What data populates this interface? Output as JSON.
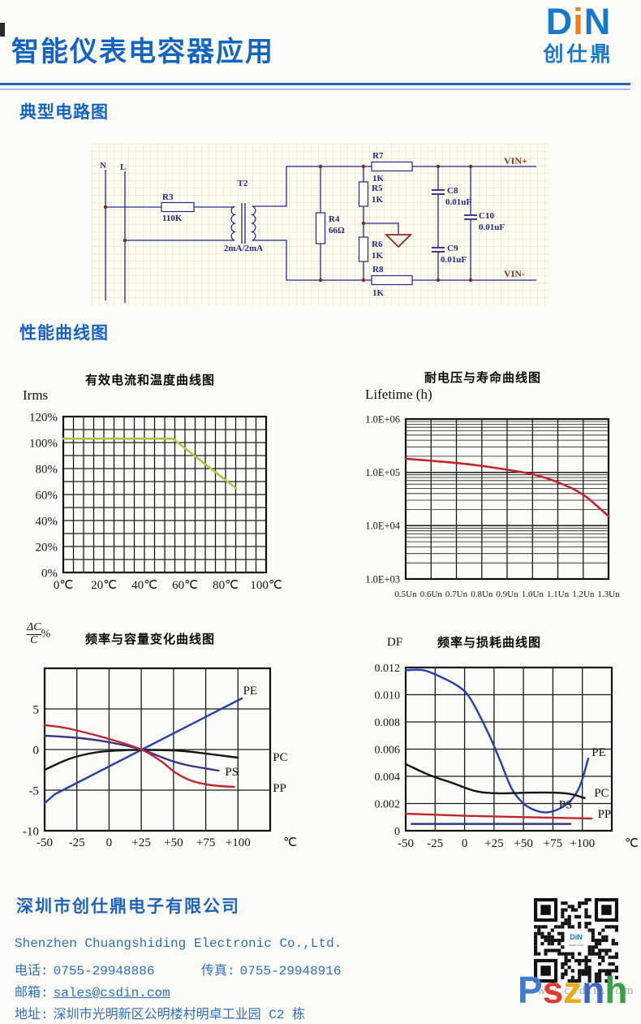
{
  "header": {
    "title": "智能仪表电容器应用",
    "logo": {
      "d": "D",
      "i": "i",
      "n": "N",
      "cn": "创仕鼎"
    }
  },
  "sections": {
    "circuit": "典型电路图",
    "curves": "性能曲线图"
  },
  "circuit": {
    "n": "N",
    "l": "L",
    "r3": "R3",
    "r3v": "110K",
    "t2": "T2",
    "t2v": "2mA/2mA",
    "r4": "R4",
    "r4v": "66Ω",
    "r5": "R5",
    "r5v": "1K",
    "r6": "R6",
    "r6v": "1K",
    "r7": "R7",
    "r7v": "1K",
    "r8": "R8",
    "r8v": "1K",
    "c8": "C8",
    "c8v": "0.01uF",
    "c9": "C9",
    "c9v": "0.01uF",
    "c10": "C10",
    "c10v": "0.01uF",
    "vin_plus": "VIN+",
    "vin_minus": "VIN-"
  },
  "chart_data": [
    {
      "name": "irms-temp",
      "type": "line",
      "title": "有效电流和温度曲线图",
      "ylabel": "Irms",
      "xlim": [
        0,
        100
      ],
      "ylim": [
        0,
        120
      ],
      "xgrid_step": 5,
      "ygrid_step": 10,
      "xticks": [
        {
          "v": 0,
          "t": "0℃"
        },
        {
          "v": 20,
          "t": "20℃"
        },
        {
          "v": 40,
          "t": "40℃"
        },
        {
          "v": 60,
          "t": "60℃"
        },
        {
          "v": 80,
          "t": "80℃"
        },
        {
          "v": 100,
          "t": "100℃"
        }
      ],
      "yticks": [
        {
          "v": 0,
          "t": "0%"
        },
        {
          "v": 20,
          "t": "20%"
        },
        {
          "v": 40,
          "t": "40%"
        },
        {
          "v": 60,
          "t": "60%"
        },
        {
          "v": 80,
          "t": "80%"
        },
        {
          "v": 100,
          "t": "100%"
        },
        {
          "v": 120,
          "t": "120%"
        }
      ],
      "series": [
        {
          "name": "irms",
          "color": "#a8c93e",
          "width": 2.6,
          "smooth": false,
          "points": [
            [
              0,
              103
            ],
            [
              54,
              103
            ],
            [
              85,
              65
            ]
          ]
        }
      ]
    },
    {
      "name": "voltage-lifetime",
      "type": "line",
      "title": "耐电压与寿命曲线图",
      "ylabel": "Lifetime (h)",
      "xlim": [
        0.5,
        1.3
      ],
      "ylim": [
        1000,
        1000000
      ],
      "ylog": true,
      "xgrid_step": 0.1,
      "xticks": [
        {
          "v": 0.5,
          "t": "0.5Un"
        },
        {
          "v": 0.6,
          "t": "0.6Un"
        },
        {
          "v": 0.7,
          "t": "0.7Un"
        },
        {
          "v": 0.8,
          "t": "0.8Un"
        },
        {
          "v": 0.9,
          "t": "0.9Un"
        },
        {
          "v": 1.0,
          "t": "1.0Un"
        },
        {
          "v": 1.1,
          "t": "1.1Un"
        },
        {
          "v": 1.2,
          "t": "1.2Un"
        },
        {
          "v": 1.3,
          "t": "1.3Un"
        }
      ],
      "yticks": [
        {
          "v": 1000000,
          "t": "1.0E+06"
        },
        {
          "v": 100000,
          "t": "1.0E+05"
        },
        {
          "v": 10000,
          "t": "1.0E+04"
        },
        {
          "v": 1000,
          "t": "1.0E+03"
        }
      ],
      "series": [
        {
          "name": "lifetime",
          "color": "#c0272d",
          "width": 2.6,
          "smooth": true,
          "points": [
            [
              0.5,
              180000
            ],
            [
              0.6,
              165000
            ],
            [
              0.7,
              150000
            ],
            [
              0.8,
              132000
            ],
            [
              0.9,
              112000
            ],
            [
              1.0,
              92000
            ],
            [
              1.1,
              65000
            ],
            [
              1.2,
              38000
            ],
            [
              1.3,
              15000
            ]
          ]
        }
      ]
    },
    {
      "name": "freq-capacitance-change",
      "type": "line",
      "title": "频率与容量变化曲线图",
      "ylabel_frac": {
        "num": "ΔC",
        "den": "C",
        "suffix": "%"
      },
      "xlim": [
        -50,
        125
      ],
      "ylim": [
        -10,
        10
      ],
      "xgrid_step": 25,
      "ygrid_step": 5,
      "x_unit": "℃",
      "xticks": [
        {
          "v": -50,
          "t": "-50"
        },
        {
          "v": -25,
          "t": "-25"
        },
        {
          "v": 0,
          "t": "0"
        },
        {
          "v": 25,
          "t": "+25"
        },
        {
          "v": 50,
          "t": "+50"
        },
        {
          "v": 75,
          "t": "+75"
        },
        {
          "v": 100,
          "t": "+100"
        }
      ],
      "yticks": [
        {
          "v": 5,
          "t": "5"
        },
        {
          "v": 0,
          "t": "0"
        },
        {
          "v": -5,
          "t": "-5"
        },
        {
          "v": -10,
          "t": "-10"
        }
      ],
      "series": [
        {
          "name": "PE",
          "label": "PE",
          "label_pos": [
            104,
            6.8
          ],
          "color": "#2440b0",
          "width": 2.4,
          "smooth": false,
          "points": [
            [
              -50,
              -6.6
            ],
            [
              -42,
              -5.5
            ],
            [
              103,
              6.3
            ]
          ]
        },
        {
          "name": "PC",
          "label": "PC",
          "label_pos": [
            127,
            -1.4
          ],
          "color": "#141414",
          "width": 2.4,
          "smooth": true,
          "points": [
            [
              -50,
              -2.5
            ],
            [
              -30,
              -1.1
            ],
            [
              -10,
              -0.35
            ],
            [
              10,
              -0.1
            ],
            [
              30,
              -0.05
            ],
            [
              55,
              -0.15
            ],
            [
              75,
              -0.5
            ],
            [
              100,
              -1.0
            ]
          ]
        },
        {
          "name": "PS",
          "label": "PS",
          "label_pos": [
            90,
            -3.2
          ],
          "color": "#3a3580",
          "width": 2.4,
          "smooth": true,
          "points": [
            [
              -50,
              1.7
            ],
            [
              -25,
              1.45
            ],
            [
              0,
              0.9
            ],
            [
              25,
              0
            ],
            [
              45,
              -1.2
            ],
            [
              60,
              -1.9
            ],
            [
              85,
              -2.6
            ]
          ]
        },
        {
          "name": "PP",
          "label": "PP",
          "label_pos": [
            127,
            -5.2
          ],
          "color": "#c0272d",
          "width": 2.4,
          "smooth": true,
          "points": [
            [
              -50,
              3.0
            ],
            [
              -32,
              2.6
            ],
            [
              0,
              1.3
            ],
            [
              25,
              0
            ],
            [
              40,
              -1.4
            ],
            [
              52,
              -2.9
            ],
            [
              65,
              -3.9
            ],
            [
              80,
              -4.4
            ],
            [
              97,
              -4.6
            ]
          ]
        }
      ]
    },
    {
      "name": "freq-dissipation",
      "type": "line",
      "title": "频率与损耗曲线图",
      "ylabel": "DF",
      "xlim": [
        -50,
        125
      ],
      "ylim": [
        0,
        0.012
      ],
      "xgrid_step": 25,
      "ygrid_step": 0.002,
      "x_unit": "℃",
      "xticks": [
        {
          "v": -50,
          "t": "-50"
        },
        {
          "v": -25,
          "t": "-25"
        },
        {
          "v": 0,
          "t": "0"
        },
        {
          "v": 25,
          "t": "+25"
        },
        {
          "v": 50,
          "t": "+50"
        },
        {
          "v": 75,
          "t": "+75"
        },
        {
          "v": 100,
          "t": "+100"
        }
      ],
      "yticks": [
        {
          "v": 0.012,
          "t": "0.012"
        },
        {
          "v": 0.01,
          "t": "0.010"
        },
        {
          "v": 0.008,
          "t": "0.008"
        },
        {
          "v": 0.006,
          "t": "0.006"
        },
        {
          "v": 0.004,
          "t": "0.004"
        },
        {
          "v": 0.002,
          "t": "0.002"
        },
        {
          "v": 0,
          "t": "0"
        }
      ],
      "series": [
        {
          "name": "PE",
          "label": "PE",
          "label_pos": [
            108,
            0.0055
          ],
          "color": "#2440b0",
          "width": 2.4,
          "smooth": true,
          "points": [
            [
              -50,
              0.0118
            ],
            [
              -35,
              0.0118
            ],
            [
              -20,
              0.0113
            ],
            [
              -5,
              0.0106
            ],
            [
              5,
              0.0097
            ],
            [
              20,
              0.0072
            ],
            [
              30,
              0.0052
            ],
            [
              40,
              0.0031
            ],
            [
              50,
              0.002
            ],
            [
              60,
              0.0015
            ],
            [
              70,
              0.00135
            ],
            [
              80,
              0.0016
            ],
            [
              90,
              0.0022
            ],
            [
              98,
              0.0033
            ],
            [
              105,
              0.0053
            ]
          ]
        },
        {
          "name": "PC",
          "label": "PC",
          "label_pos": [
            110,
            0.0025
          ],
          "color": "#141414",
          "width": 2.4,
          "smooth": true,
          "points": [
            [
              -50,
              0.0049
            ],
            [
              -30,
              0.0041
            ],
            [
              -10,
              0.0035
            ],
            [
              10,
              0.0029
            ],
            [
              30,
              0.00275
            ],
            [
              55,
              0.0028
            ],
            [
              75,
              0.0028
            ],
            [
              90,
              0.0027
            ],
            [
              102,
              0.0024
            ]
          ]
        },
        {
          "name": "PS",
          "label": "PS",
          "label_pos": [
            80,
            0.00165
          ],
          "color": "#3a3580",
          "width": 2.4,
          "smooth": false,
          "points": [
            [
              -45,
              0.0005
            ],
            [
              90,
              0.0005
            ]
          ]
        },
        {
          "name": "PP",
          "label": "PP",
          "label_pos": [
            113,
            0.00095
          ],
          "color": "#c0272d",
          "width": 2.4,
          "smooth": false,
          "points": [
            [
              -50,
              0.00125
            ],
            [
              0,
              0.0011
            ],
            [
              60,
              0.00098
            ],
            [
              108,
              0.0009
            ]
          ]
        }
      ]
    }
  ],
  "footer": {
    "company_cn": "深圳市创仕鼎电子有限公司",
    "company_en": "Shenzhen Chuangshiding Electronic Co.,Ltd.",
    "phone_label": "电话:",
    "phone": "0755-29948886",
    "fax_label": "传真:",
    "fax": "0755-29948916",
    "email_label": "邮箱:",
    "email": "sales@csdin.com",
    "address_label": "地址:",
    "address": "深圳市光明新区公明楼村明卓工业园 C2 栋",
    "watermark_url": "www.csdin.com",
    "watermark_overlay": [
      {
        "ch": "P",
        "color": "#3e7cd0"
      },
      {
        "ch": "s",
        "color": "#e03a2e"
      },
      {
        "ch": "z",
        "color": "#f0a818"
      },
      {
        "ch": "n",
        "color": "#3e66c8"
      },
      {
        "ch": "h",
        "color": "#38a048"
      }
    ]
  }
}
